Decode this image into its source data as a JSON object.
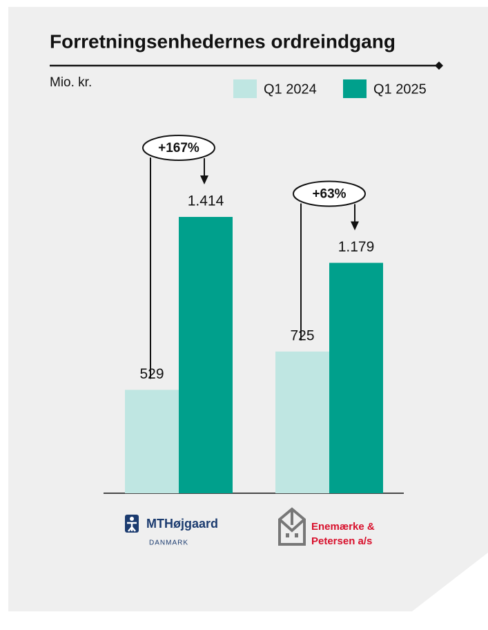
{
  "chart_data": {
    "type": "bar",
    "title": "Forretningsenhedernes ordreindgang",
    "subtitle": "Mio. kr.",
    "categories": [
      [
        "MTHøjgaard",
        "DANMARK"
      ],
      [
        "Enemærke &",
        "Petersen a/s"
      ]
    ],
    "series": [
      {
        "name": "Q1 2024",
        "color": "#bfe6e2",
        "values": [
          529,
          725
        ],
        "value_labels": [
          "529",
          "725"
        ]
      },
      {
        "name": "Q1 2025",
        "color": "#00a08c",
        "values": [
          1414,
          1179
        ],
        "value_labels": [
          "1.414",
          "1.179"
        ]
      }
    ],
    "annotations": [
      "+167%",
      "+63%"
    ],
    "legend": "top-right"
  }
}
